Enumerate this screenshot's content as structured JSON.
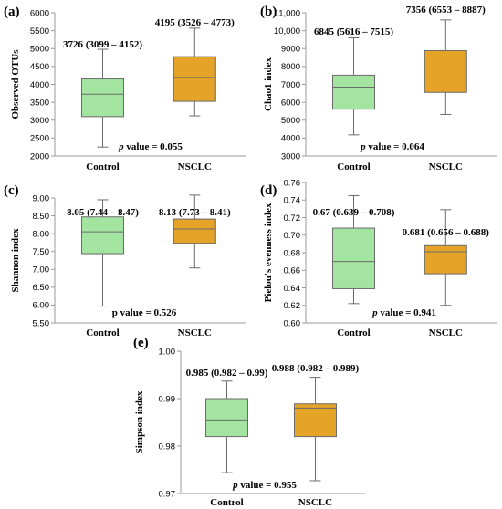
{
  "chart_data": [
    {
      "type": "box",
      "letter": "(a)",
      "ylabel": "Observed OTUs",
      "ylim": [
        2000,
        6000
      ],
      "yticks": [
        "2000",
        "2500",
        "3000",
        "3500",
        "4000",
        "4500",
        "5000",
        "5500",
        "6000"
      ],
      "categories": [
        "Control",
        "NSCLC"
      ],
      "boxes": [
        {
          "min": 2250,
          "q1": 3099,
          "median": 3726,
          "q3": 4152,
          "max": 4980,
          "label": "3726 (3099 – 4152)"
        },
        {
          "min": 3120,
          "q1": 3526,
          "median": 4195,
          "q3": 4773,
          "max": 5570,
          "label": "4195 (3526 – 4773)"
        }
      ],
      "pvalue": {
        "prefix": "p",
        "text": " value = 0.055"
      }
    },
    {
      "type": "box",
      "letter": "(b)",
      "ylabel": "Chao1 index",
      "ylim": [
        3000,
        11000
      ],
      "yticks": [
        "3000",
        "4000",
        "5000",
        "6000",
        "7000",
        "8000",
        "9000",
        "10,000",
        "11,000"
      ],
      "categories": [
        "Control",
        "NSCLC"
      ],
      "boxes": [
        {
          "min": 4180,
          "q1": 5616,
          "median": 6845,
          "q3": 7515,
          "max": 9600,
          "label": "6845 (5616 – 7515)"
        },
        {
          "min": 5320,
          "q1": 6553,
          "median": 7356,
          "q3": 8887,
          "max": 10600,
          "label": "7356 (6553 – 8887)"
        }
      ],
      "pvalue": {
        "prefix": "p",
        "text": " value = 0.064"
      }
    },
    {
      "type": "box",
      "letter": "(c)",
      "ylabel": "Shannon index",
      "ylim": [
        5.5,
        9.0
      ],
      "yticks": [
        "5.50",
        "6.00",
        "6.50",
        "7.00",
        "7.50",
        "8.00",
        "8.50",
        "9.00"
      ],
      "categories": [
        "Control",
        "NSCLC"
      ],
      "boxes": [
        {
          "min": 5.97,
          "q1": 7.44,
          "median": 8.05,
          "q3": 8.47,
          "max": 8.95,
          "label": "8.05 (7.44 – 8.47)"
        },
        {
          "min": 7.04,
          "q1": 7.73,
          "median": 8.13,
          "q3": 8.41,
          "max": 9.08,
          "label": "8.13 (7.73 – 8.41)"
        }
      ],
      "pvalue": {
        "prefix": "",
        "text": "p value = 0.526"
      }
    },
    {
      "type": "box",
      "letter": "(d)",
      "ylabel": "Pielou's evenness index",
      "ylim": [
        0.6,
        0.76
      ],
      "yticks": [
        "0.60",
        "0.62",
        "0.64",
        "0.66",
        "0.68",
        "0.70",
        "0.72",
        "0.74",
        "0.76"
      ],
      "categories": [
        "Control",
        "NSCLC"
      ],
      "boxes": [
        {
          "min": 0.622,
          "q1": 0.639,
          "median": 0.67,
          "q3": 0.708,
          "max": 0.745,
          "label": "0.67 (0.639 – 0.708)"
        },
        {
          "min": 0.62,
          "q1": 0.656,
          "median": 0.681,
          "q3": 0.688,
          "max": 0.729,
          "label": "0.681 (0.656 – 0.688)"
        }
      ],
      "pvalue": {
        "prefix": "p",
        "text": " value = 0.941"
      }
    },
    {
      "type": "box",
      "letter": "(e)",
      "ylabel": "Simpson index",
      "ylim": [
        0.97,
        1.0
      ],
      "yticks": [
        "0.97",
        "0.98",
        "0.99",
        "1.00"
      ],
      "categories": [
        "Control",
        "NSCLC"
      ],
      "boxes": [
        {
          "min": 0.9744,
          "q1": 0.982,
          "median": 0.9855,
          "q3": 0.99,
          "max": 0.9937,
          "label": "0.985 (0.982 – 0.99)"
        },
        {
          "min": 0.9727,
          "q1": 0.982,
          "median": 0.988,
          "q3": 0.9889,
          "max": 0.9945,
          "label": "0.988 (0.982 – 0.989)"
        }
      ],
      "pvalue": {
        "prefix": "p",
        "text": " value = 0.955"
      }
    }
  ],
  "colors": {
    "control_fill": "#a3e4a1",
    "nsclc_fill": "#e5a328",
    "outline": "#6b6b6b",
    "axis": "#9a9a9a"
  }
}
